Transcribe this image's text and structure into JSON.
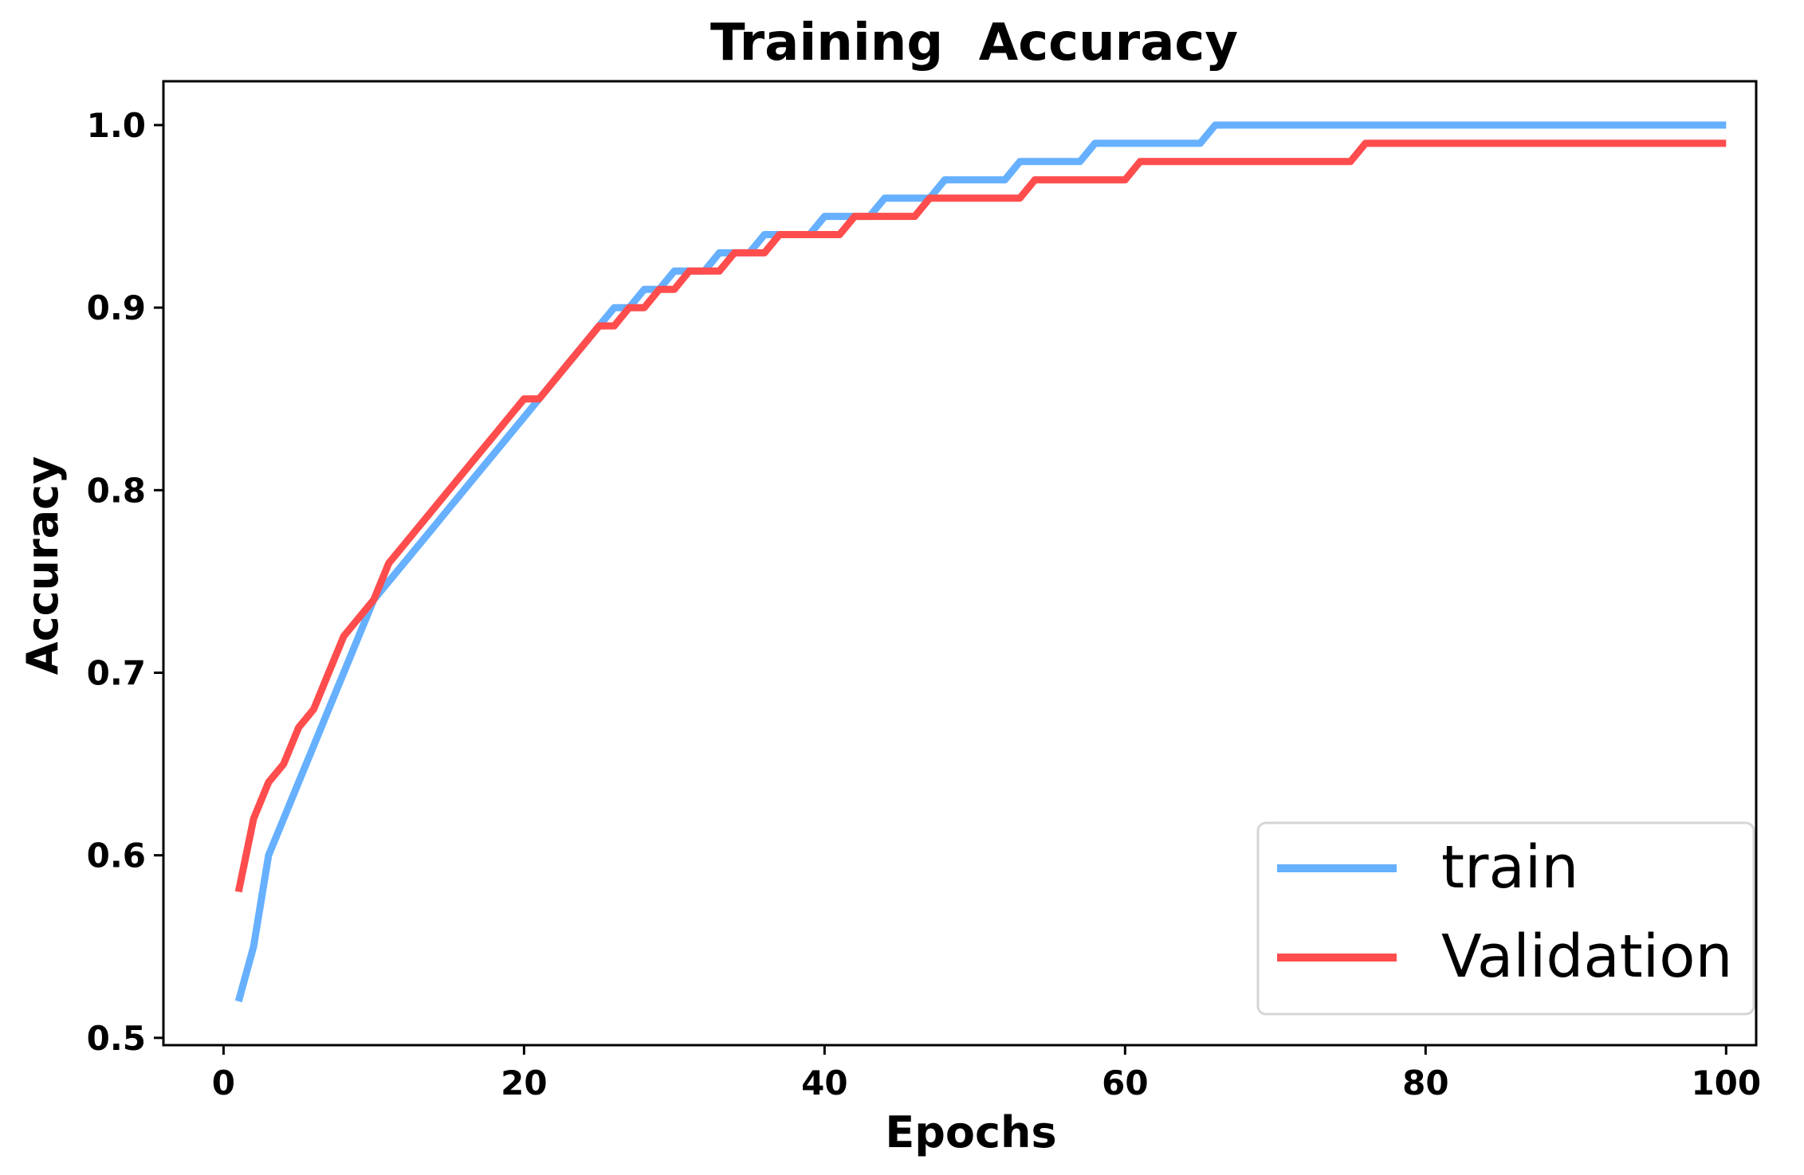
{
  "chart_data": {
    "type": "line",
    "title": "Training  Accuracy",
    "xlabel": "Epochs",
    "ylabel": "Accuracy",
    "xlim": [
      -4,
      102
    ],
    "ylim": [
      0.496,
      1.024
    ],
    "xticks": [
      0,
      20,
      40,
      60,
      80,
      100
    ],
    "xtick_labels": [
      "0",
      "20",
      "40",
      "60",
      "80",
      "100"
    ],
    "yticks": [
      0.5,
      0.6,
      0.7,
      0.8,
      0.9,
      1.0
    ],
    "ytick_labels": [
      "0.5",
      "0.6",
      "0.7",
      "0.8",
      "0.9",
      "1.0"
    ],
    "grid": false,
    "legend_position": "lower-right",
    "series": [
      {
        "name": "train",
        "color": "#66b0ff",
        "points": [
          [
            1,
            0.52
          ],
          [
            2,
            0.55
          ],
          [
            3,
            0.6
          ],
          [
            4,
            0.62
          ],
          [
            5,
            0.64
          ],
          [
            6,
            0.66
          ],
          [
            7,
            0.68
          ],
          [
            8,
            0.7
          ],
          [
            9,
            0.72
          ],
          [
            10,
            0.74
          ],
          [
            11,
            0.75
          ],
          [
            12,
            0.76
          ],
          [
            13,
            0.77
          ],
          [
            14,
            0.78
          ],
          [
            15,
            0.79
          ],
          [
            16,
            0.8
          ],
          [
            17,
            0.81
          ],
          [
            18,
            0.82
          ],
          [
            19,
            0.83
          ],
          [
            20,
            0.84
          ],
          [
            21,
            0.85
          ],
          [
            22,
            0.86
          ],
          [
            23,
            0.87
          ],
          [
            24,
            0.88
          ],
          [
            25,
            0.89
          ],
          [
            26,
            0.9
          ],
          [
            27,
            0.9
          ],
          [
            28,
            0.91
          ],
          [
            29,
            0.91
          ],
          [
            30,
            0.92
          ],
          [
            31,
            0.92
          ],
          [
            32,
            0.92
          ],
          [
            33,
            0.93
          ],
          [
            34,
            0.93
          ],
          [
            35,
            0.93
          ],
          [
            36,
            0.94
          ],
          [
            37,
            0.94
          ],
          [
            38,
            0.94
          ],
          [
            39,
            0.94
          ],
          [
            40,
            0.95
          ],
          [
            41,
            0.95
          ],
          [
            42,
            0.95
          ],
          [
            43,
            0.95
          ],
          [
            44,
            0.96
          ],
          [
            45,
            0.96
          ],
          [
            46,
            0.96
          ],
          [
            47,
            0.96
          ],
          [
            48,
            0.97
          ],
          [
            49,
            0.97
          ],
          [
            50,
            0.97
          ],
          [
            51,
            0.97
          ],
          [
            52,
            0.97
          ],
          [
            53,
            0.98
          ],
          [
            54,
            0.98
          ],
          [
            55,
            0.98
          ],
          [
            56,
            0.98
          ],
          [
            57,
            0.98
          ],
          [
            58,
            0.99
          ],
          [
            59,
            0.99
          ],
          [
            60,
            0.99
          ],
          [
            61,
            0.99
          ],
          [
            62,
            0.99
          ],
          [
            63,
            0.99
          ],
          [
            64,
            0.99
          ],
          [
            65,
            0.99
          ],
          [
            66,
            1.0
          ],
          [
            70,
            1.0
          ],
          [
            75,
            1.0
          ],
          [
            80,
            1.0
          ],
          [
            85,
            1.0
          ],
          [
            90,
            1.0
          ],
          [
            95,
            1.0
          ],
          [
            100,
            1.0
          ]
        ]
      },
      {
        "name": "Validation",
        "color": "#ff4d4d",
        "points": [
          [
            1,
            0.58
          ],
          [
            2,
            0.62
          ],
          [
            3,
            0.64
          ],
          [
            4,
            0.65
          ],
          [
            5,
            0.67
          ],
          [
            6,
            0.68
          ],
          [
            7,
            0.7
          ],
          [
            8,
            0.72
          ],
          [
            9,
            0.73
          ],
          [
            10,
            0.74
          ],
          [
            11,
            0.76
          ],
          [
            12,
            0.77
          ],
          [
            13,
            0.78
          ],
          [
            14,
            0.79
          ],
          [
            15,
            0.8
          ],
          [
            16,
            0.81
          ],
          [
            17,
            0.82
          ],
          [
            18,
            0.83
          ],
          [
            19,
            0.84
          ],
          [
            20,
            0.85
          ],
          [
            21,
            0.85
          ],
          [
            22,
            0.86
          ],
          [
            23,
            0.87
          ],
          [
            24,
            0.88
          ],
          [
            25,
            0.89
          ],
          [
            26,
            0.89
          ],
          [
            27,
            0.9
          ],
          [
            28,
            0.9
          ],
          [
            29,
            0.91
          ],
          [
            30,
            0.91
          ],
          [
            31,
            0.92
          ],
          [
            32,
            0.92
          ],
          [
            33,
            0.92
          ],
          [
            34,
            0.93
          ],
          [
            35,
            0.93
          ],
          [
            36,
            0.93
          ],
          [
            37,
            0.94
          ],
          [
            38,
            0.94
          ],
          [
            39,
            0.94
          ],
          [
            40,
            0.94
          ],
          [
            41,
            0.94
          ],
          [
            42,
            0.95
          ],
          [
            43,
            0.95
          ],
          [
            44,
            0.95
          ],
          [
            45,
            0.95
          ],
          [
            46,
            0.95
          ],
          [
            47,
            0.96
          ],
          [
            48,
            0.96
          ],
          [
            49,
            0.96
          ],
          [
            50,
            0.96
          ],
          [
            51,
            0.96
          ],
          [
            52,
            0.96
          ],
          [
            53,
            0.96
          ],
          [
            54,
            0.97
          ],
          [
            55,
            0.97
          ],
          [
            56,
            0.97
          ],
          [
            57,
            0.97
          ],
          [
            58,
            0.97
          ],
          [
            59,
            0.97
          ],
          [
            60,
            0.97
          ],
          [
            61,
            0.98
          ],
          [
            62,
            0.98
          ],
          [
            65,
            0.98
          ],
          [
            70,
            0.98
          ],
          [
            75,
            0.98
          ],
          [
            76,
            0.99
          ],
          [
            80,
            0.99
          ],
          [
            85,
            0.99
          ],
          [
            90,
            0.99
          ],
          [
            95,
            0.99
          ],
          [
            100,
            0.99
          ]
        ]
      }
    ]
  }
}
